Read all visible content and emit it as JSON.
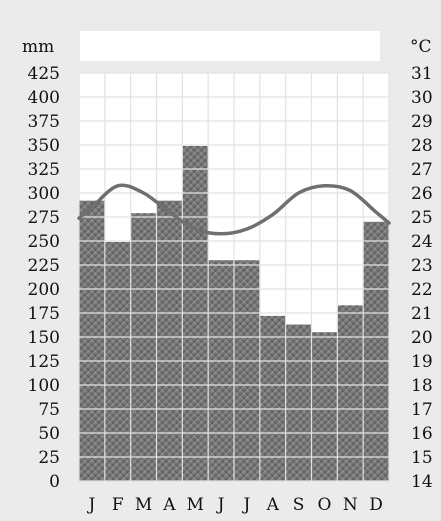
{
  "chart_data": {
    "type": "bar",
    "categories": [
      "J",
      "F",
      "M",
      "A",
      "M",
      "J",
      "J",
      "A",
      "S",
      "O",
      "N",
      "D"
    ],
    "series": [
      {
        "type": "bar",
        "axis": "left",
        "values": [
          292,
          249,
          279,
          292,
          349,
          230,
          230,
          172,
          163,
          155,
          183,
          270
        ]
      },
      {
        "type": "line",
        "axis": "right",
        "values": [
          25.4,
          26.3,
          26.0,
          25.2,
          24.5,
          24.3,
          24.5,
          25.1,
          26.0,
          26.3,
          26.1,
          25.2
        ]
      }
    ],
    "y_left": {
      "unit": "mm",
      "min": 0,
      "max": 425,
      "step": 25
    },
    "y_right": {
      "unit": "°C",
      "min": 14,
      "max": 31,
      "step": 1
    },
    "grid": true
  }
}
